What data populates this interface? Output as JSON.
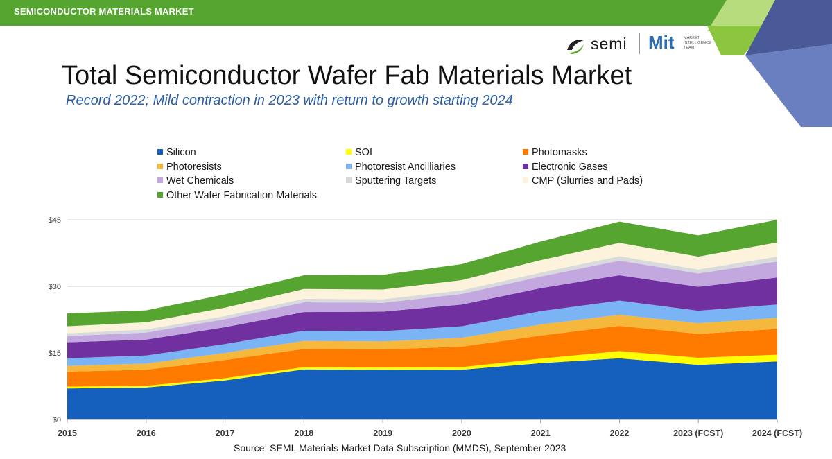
{
  "header": {
    "bar_title": "SEMICONDUCTOR MATERIALS MARKET",
    "bar_color": "#55a530"
  },
  "branding": {
    "semi_logo_text": "semi",
    "mit_logo_text": "Mit",
    "mit_tagline": "MARKET INTELLIGENCE TEAM"
  },
  "title": "Total Semiconductor Wafer Fab Materials Market",
  "subtitle": "Record  2022; Mild contraction in 2023 with return to growth starting 2024",
  "source": "Source: SEMI, Materials Market Data Subscription (MMDS), September 2023",
  "chart_data": {
    "type": "area",
    "stacked": true,
    "categories": [
      "2015",
      "2016",
      "2017",
      "2018",
      "2019",
      "2020",
      "2021",
      "2022",
      "2023 (FCST)",
      "2024 (FCST)"
    ],
    "ylim": [
      0,
      45
    ],
    "yticks": [
      0,
      15,
      30,
      45
    ],
    "ytick_labels": [
      "$0",
      "$15",
      "$30",
      "$45"
    ],
    "grid": "horizontal",
    "legend_position": "top",
    "series": [
      {
        "name": "Silicon",
        "color": "#1560bd",
        "values": [
          7.0,
          7.2,
          8.8,
          11.3,
          11.2,
          11.2,
          12.7,
          13.8,
          12.3,
          13.1
        ]
      },
      {
        "name": "SOI",
        "color": "#ffff00",
        "values": [
          0.4,
          0.4,
          0.5,
          0.5,
          0.5,
          0.6,
          1.0,
          1.6,
          1.6,
          1.5
        ]
      },
      {
        "name": "Photomasks",
        "color": "#ff7b00",
        "values": [
          3.4,
          3.6,
          4.1,
          4.1,
          4.1,
          4.6,
          5.2,
          5.7,
          5.4,
          5.8
        ]
      },
      {
        "name": "Photoresists",
        "color": "#f5b83d",
        "values": [
          1.3,
          1.4,
          1.6,
          1.8,
          1.8,
          2.0,
          2.5,
          2.5,
          2.4,
          2.5
        ]
      },
      {
        "name": "Photoresist Ancilliaries",
        "color": "#7ab4f5",
        "values": [
          1.7,
          1.8,
          2.0,
          2.3,
          2.3,
          2.6,
          3.0,
          3.2,
          2.8,
          3.0
        ]
      },
      {
        "name": "Electronic Gases",
        "color": "#7030a0",
        "values": [
          3.6,
          3.6,
          3.8,
          4.2,
          4.4,
          4.9,
          5.2,
          5.7,
          5.4,
          6.1
        ]
      },
      {
        "name": "Wet Chemicals",
        "color": "#c3a8e0",
        "values": [
          1.4,
          1.6,
          1.8,
          2.2,
          2.0,
          2.4,
          2.6,
          3.3,
          3.0,
          3.6
        ]
      },
      {
        "name": "Sputtering Targets",
        "color": "#d9dadb",
        "values": [
          0.6,
          0.7,
          0.7,
          0.8,
          0.8,
          0.8,
          0.9,
          1.0,
          0.9,
          1.1
        ]
      },
      {
        "name": "CMP (Slurries and Pads)",
        "color": "#fdf3dc",
        "values": [
          1.6,
          1.6,
          1.9,
          2.2,
          2.2,
          2.3,
          2.8,
          3.0,
          2.9,
          3.2
        ]
      },
      {
        "name": "Other Wafer Fabrication Materials",
        "color": "#55a530",
        "values": [
          2.9,
          2.7,
          3.0,
          3.1,
          3.3,
          3.6,
          4.2,
          4.8,
          4.8,
          5.1
        ]
      }
    ]
  },
  "colors": {
    "bar_green": "#55a530",
    "title_blue": "#2b5ea8",
    "corner_lime": "#8cc63f",
    "corner_navy": "#5b6fad"
  }
}
